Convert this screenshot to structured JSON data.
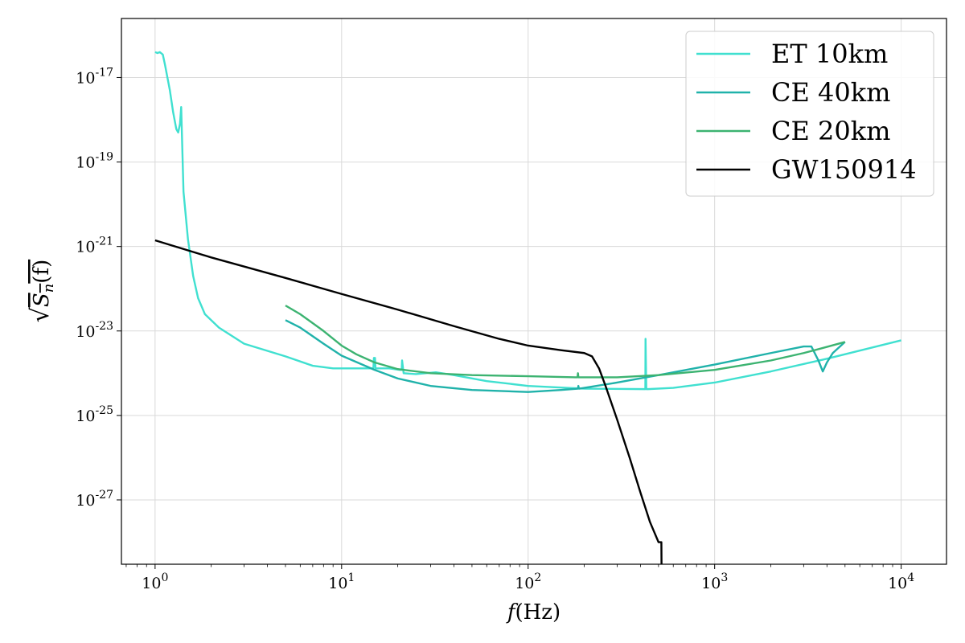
{
  "chart_data": {
    "type": "line",
    "title": "",
    "xlabel": "f(Hz)",
    "ylabel": "√S_n(f)",
    "xscale": "log",
    "yscale": "log",
    "xlim": [
      0.66,
      17500
    ],
    "ylim": [
      3e-29,
      2.5e-16
    ],
    "x_ticks": [
      {
        "value": 1,
        "label": "10^0"
      },
      {
        "value": 10,
        "label": "10^1"
      },
      {
        "value": 100,
        "label": "10^2"
      },
      {
        "value": 1000,
        "label": "10^3"
      },
      {
        "value": 10000,
        "label": "10^4"
      }
    ],
    "y_ticks": [
      {
        "value": 1e-17,
        "label": "10^-17"
      },
      {
        "value": 1e-19,
        "label": "10^-19"
      },
      {
        "value": 1e-21,
        "label": "10^-21"
      },
      {
        "value": 1e-23,
        "label": "10^-23"
      },
      {
        "value": 1e-25,
        "label": "10^-25"
      },
      {
        "value": 1e-27,
        "label": "10^-27"
      }
    ],
    "grid": true,
    "legend_position": "top-right",
    "series": [
      {
        "name": "ET 10km",
        "color": "#40e0d0",
        "x": [
          1.0,
          1.03,
          1.06,
          1.1,
          1.13,
          1.2,
          1.25,
          1.3,
          1.33,
          1.36,
          1.38,
          1.42,
          1.5,
          1.6,
          1.7,
          1.85,
          2.2,
          3.0,
          5.0,
          7.0,
          9.0,
          14.0,
          14.8,
          14.9,
          15.1,
          15.2,
          18.0,
          20.5,
          21.0,
          21.1,
          21.5,
          25.0,
          32.0,
          40.0,
          60.0,
          100.0,
          200.0,
          420.0,
          425.0,
          426.0,
          430.0,
          440.0,
          600.0,
          1000.0,
          2000.0,
          4000.0,
          10000.0
        ],
        "y": [
          4e-17,
          3.8e-17,
          4e-17,
          3.5e-17,
          2e-17,
          5e-18,
          1.5e-18,
          6e-19,
          5e-19,
          8e-19,
          2e-18,
          2e-20,
          1.5e-21,
          2e-22,
          6e-23,
          2.5e-23,
          1.2e-23,
          5e-24,
          2.5e-24,
          1.5e-24,
          1.3e-24,
          1.3e-24,
          1.3e-24,
          2.3e-24,
          2.3e-24,
          1.3e-24,
          1.3e-24,
          1.2e-24,
          1.2e-24,
          2e-24,
          1e-24,
          9.5e-25,
          1.05e-24,
          9e-25,
          6.5e-25,
          5e-25,
          4.3e-25,
          4.2e-25,
          4.2e-25,
          6.5e-24,
          4.2e-25,
          4.2e-25,
          4.5e-25,
          6e-25,
          1.1e-24,
          2.2e-24,
          6e-24
        ]
      },
      {
        "name": "CE 40km",
        "color": "#20b2aa",
        "x": [
          5.0,
          6.0,
          8.0,
          10.0,
          15.0,
          20.0,
          30.0,
          50.0,
          100.0,
          150.0,
          185.0,
          186.0,
          187.0,
          188.0,
          200.0,
          300.0,
          500.0,
          1000.0,
          2000.0,
          3000.0,
          3300.0,
          3600.0,
          3800.0,
          4000.0,
          4300.0,
          5000.0
        ],
        "y": [
          1.8e-23,
          1.2e-23,
          5e-24,
          2.6e-24,
          1.2e-24,
          7.5e-25,
          5e-25,
          4e-25,
          3.6e-25,
          4e-25,
          4.3e-25,
          5e-25,
          4.3e-25,
          4.3e-25,
          4.5e-25,
          6e-25,
          9e-25,
          1.6e-24,
          3e-24,
          4.3e-24,
          4.3e-24,
          2e-24,
          1.1e-24,
          1.8e-24,
          3e-24,
          5.5e-24
        ]
      },
      {
        "name": "CE 20km",
        "color": "#3cb371",
        "x": [
          5.0,
          6.0,
          8.0,
          10.0,
          12.0,
          15.0,
          20.0,
          30.0,
          50.0,
          100.0,
          180.0,
          184.0,
          185.0,
          186.0,
          190.0,
          300.0,
          500.0,
          1000.0,
          2000.0,
          3000.0,
          4000.0,
          5000.0
        ],
        "y": [
          4e-23,
          2.5e-23,
          1e-23,
          4.5e-24,
          2.8e-24,
          1.8e-24,
          1.25e-24,
          1e-24,
          9e-25,
          8.5e-25,
          8e-25,
          8e-25,
          1e-24,
          8e-25,
          8e-25,
          8e-25,
          9e-25,
          1.2e-24,
          2e-24,
          3e-24,
          4.2e-24,
          5.5e-24
        ]
      },
      {
        "name": "GW150914",
        "color": "#000000",
        "x": [
          1.0,
          2.0,
          5.0,
          10.0,
          20.0,
          40.0,
          70.0,
          100.0,
          150.0,
          200.0,
          220.0,
          240.0,
          260.0,
          300.0,
          350.0,
          400.0,
          450.0,
          500.0,
          518.0,
          519.0
        ],
        "y": [
          1.4e-21,
          5.5e-22,
          1.8e-22,
          7.5e-23,
          3.2e-23,
          1.3e-23,
          6.5e-24,
          4.5e-24,
          3.5e-24,
          3e-24,
          2.5e-24,
          1.3e-24,
          5e-25,
          8e-26,
          1e-26,
          1.5e-27,
          3e-28,
          1e-28,
          1e-28,
          3e-29
        ]
      }
    ]
  }
}
